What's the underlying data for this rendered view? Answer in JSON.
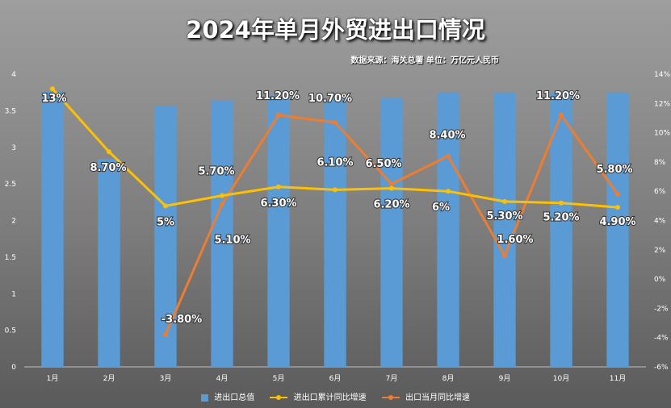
{
  "title": "2024年单月外贸进出口情况",
  "subtitle": "数据来源：海关总署 单位：万亿元人民币",
  "colors": {
    "bar": "#5b9bd5",
    "cumulative_line": "#ffc000",
    "monthly_line": "#ed7d31"
  },
  "legend": {
    "bar": "进出口总值",
    "cumulative": "进出口累计同比增速",
    "monthly": "出口当月同比增速"
  },
  "chart_data": {
    "type": "bar",
    "title": "2024年单月外贸进出口情况",
    "subtitle": "数据来源：海关总署 单位：万亿元人民币",
    "categories": [
      "1月",
      "2月",
      "3月",
      "4月",
      "5月",
      "6月",
      "7月",
      "8月",
      "9月",
      "10月",
      "11月"
    ],
    "left_axis": {
      "ylim": [
        0,
        4
      ],
      "ticks": [
        "0",
        "0.5",
        "1",
        "1.5",
        "2",
        "2.5",
        "3",
        "3.5",
        "4"
      ]
    },
    "right_axis": {
      "ylim": [
        -6,
        14
      ],
      "ticks": [
        "-6%",
        "-4%",
        "-2%",
        "0%",
        "2%",
        "4%",
        "6%",
        "8%",
        "10%",
        "12%",
        "14%"
      ]
    },
    "series": [
      {
        "name": "进出口总值",
        "type": "bar",
        "axis": "left",
        "values": [
          3.76,
          2.84,
          3.56,
          3.64,
          3.71,
          3.66,
          3.68,
          3.75,
          3.75,
          3.75,
          3.75
        ]
      },
      {
        "name": "进出口累计同比增速",
        "type": "line",
        "axis": "right",
        "values": [
          13,
          8.7,
          5,
          5.7,
          6.3,
          6.1,
          6.2,
          6,
          5.3,
          5.2,
          4.9
        ],
        "labels": [
          "13%",
          "8.70%",
          "5%",
          "5.70%",
          "6.30%",
          "6.10%",
          "6.20%",
          "6%",
          "5.30%",
          "5.20%",
          "4.90%"
        ]
      },
      {
        "name": "出口当月同比增速",
        "type": "line",
        "axis": "right",
        "values": [
          null,
          null,
          -3.8,
          5.1,
          11.2,
          10.7,
          6.5,
          8.4,
          1.6,
          11.2,
          5.8
        ],
        "labels": [
          null,
          null,
          "-3.80%",
          "5.10%",
          "11.20%",
          "10.70%",
          "6.50%",
          "8.40%",
          "1.60%",
          "11.20%",
          "5.80%"
        ]
      }
    ],
    "legend_position": "bottom",
    "grid": false
  }
}
